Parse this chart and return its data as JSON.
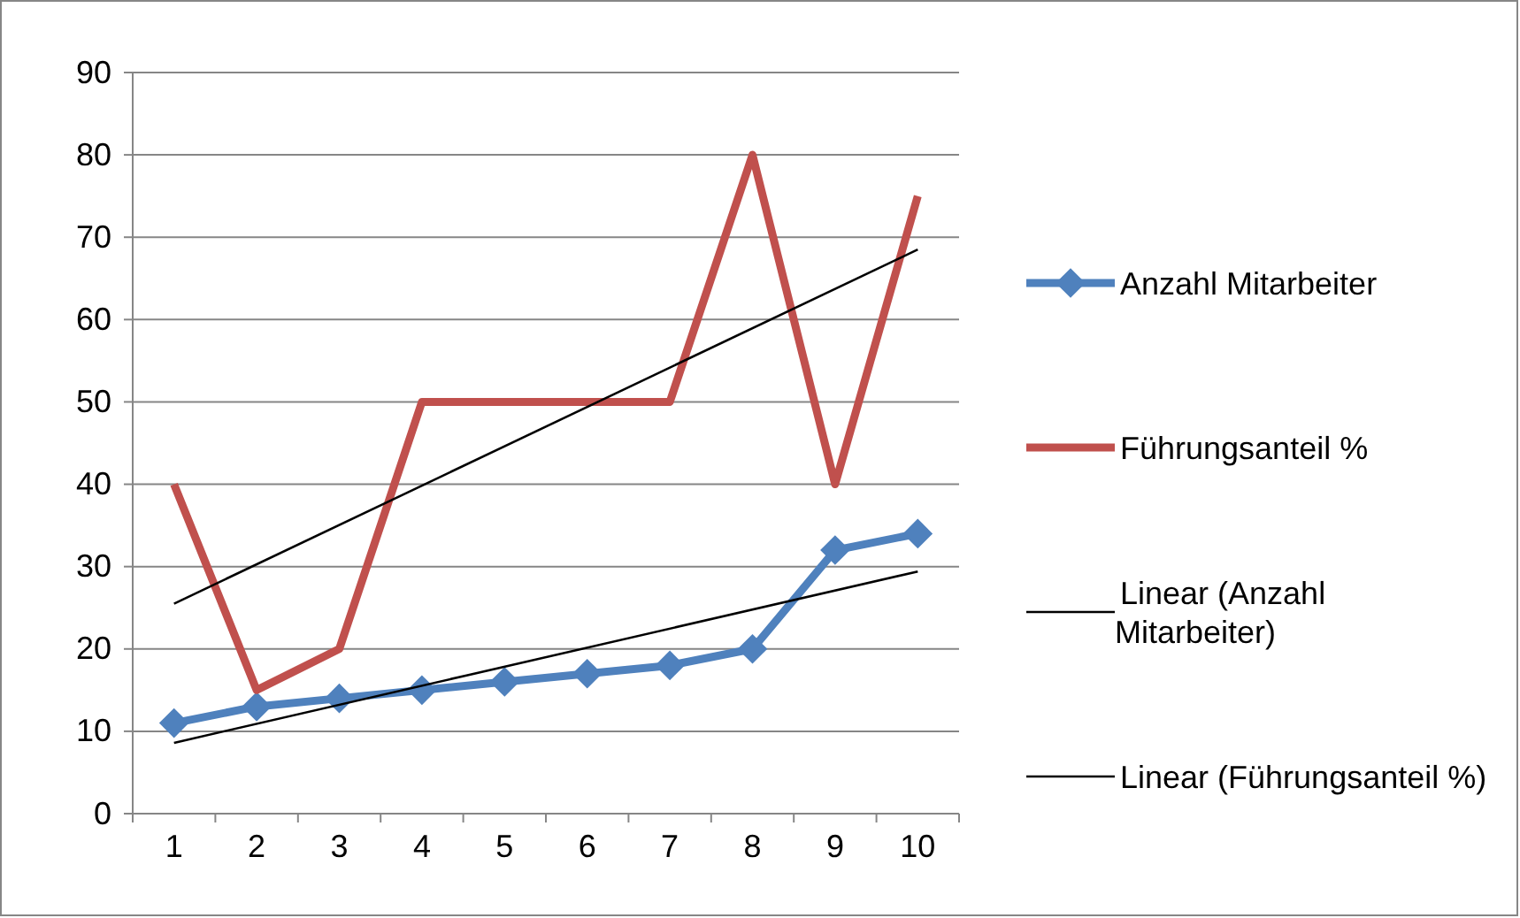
{
  "chart_data": {
    "type": "line",
    "categories": [
      "1",
      "2",
      "3",
      "4",
      "5",
      "6",
      "7",
      "8",
      "9",
      "10"
    ],
    "ylim": [
      0,
      90
    ],
    "yticks": [
      0,
      10,
      20,
      30,
      40,
      50,
      60,
      70,
      80,
      90
    ],
    "grid": "y",
    "legend": "right",
    "line_style": "solid",
    "series": [
      {
        "name": "Anzahl Mitarbeiter",
        "color": "#4f81bd",
        "marker": "diamond",
        "values": [
          11,
          13,
          14,
          15,
          16,
          17,
          18,
          20,
          32,
          34
        ]
      },
      {
        "name": "Führungsanteil %",
        "color": "#c0504d",
        "marker": "none",
        "values": [
          40,
          15,
          20,
          50,
          50,
          50,
          50,
          80,
          40,
          75
        ]
      },
      {
        "name": "Linear (Anzahl Mitarbeiter)",
        "color": "#000000",
        "marker": "none",
        "x": [
          "1",
          "10"
        ],
        "values": [
          8.6,
          29.4
        ]
      },
      {
        "name": "Linear (Führungsanteil %)",
        "color": "#000000",
        "marker": "none",
        "x": [
          "1",
          "10"
        ],
        "values": [
          25.5,
          68.5
        ]
      }
    ]
  }
}
